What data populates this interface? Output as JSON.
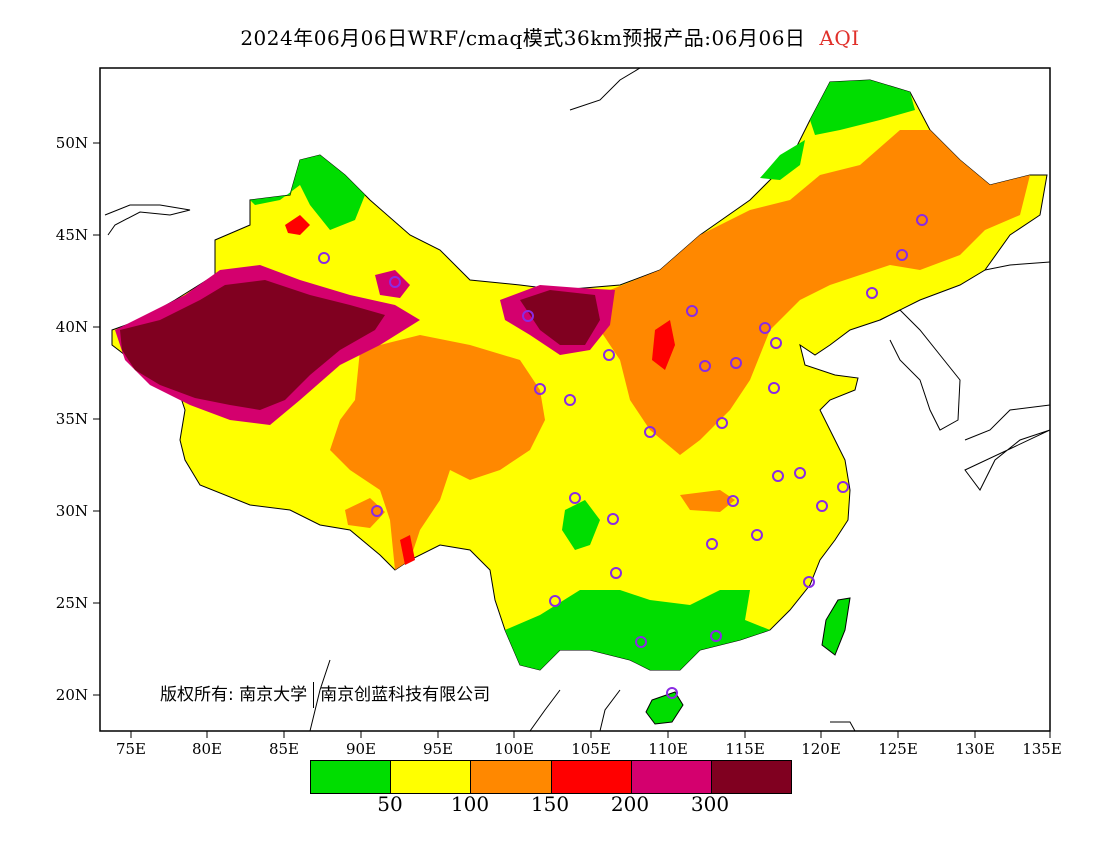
{
  "header": {
    "title": "2024年06月06日WRF/cmaq模式36km预报产品:06月06日",
    "variable": "AQI"
  },
  "axes": {
    "lat_labels": [
      "50N",
      "45N",
      "40N",
      "35N",
      "30N",
      "25N",
      "20N"
    ],
    "lon_labels": [
      "75E",
      "80E",
      "85E",
      "90E",
      "95E",
      "100E",
      "105E",
      "110E",
      "115E",
      "120E",
      "125E",
      "130E",
      "135E"
    ]
  },
  "copyright": {
    "prefix": "版权所有:",
    "org1": "南京大学",
    "org2": "南京创蓝科技有限公司"
  },
  "legend": {
    "colors": [
      "#00dd00",
      "#ffff00",
      "#ff8800",
      "#ff0000",
      "#d4006e",
      "#800020"
    ],
    "labels": [
      "50",
      "100",
      "150",
      "200",
      "300"
    ]
  },
  "colors": {
    "good": "#00dd00",
    "moderate": "#ffff00",
    "usg": "#ff8800",
    "unhealthy": "#ff0000",
    "very_unhealthy": "#d4006e",
    "hazardous": "#800020",
    "station_marker": "#8a2be2",
    "title_tag": "#e0302a"
  }
}
